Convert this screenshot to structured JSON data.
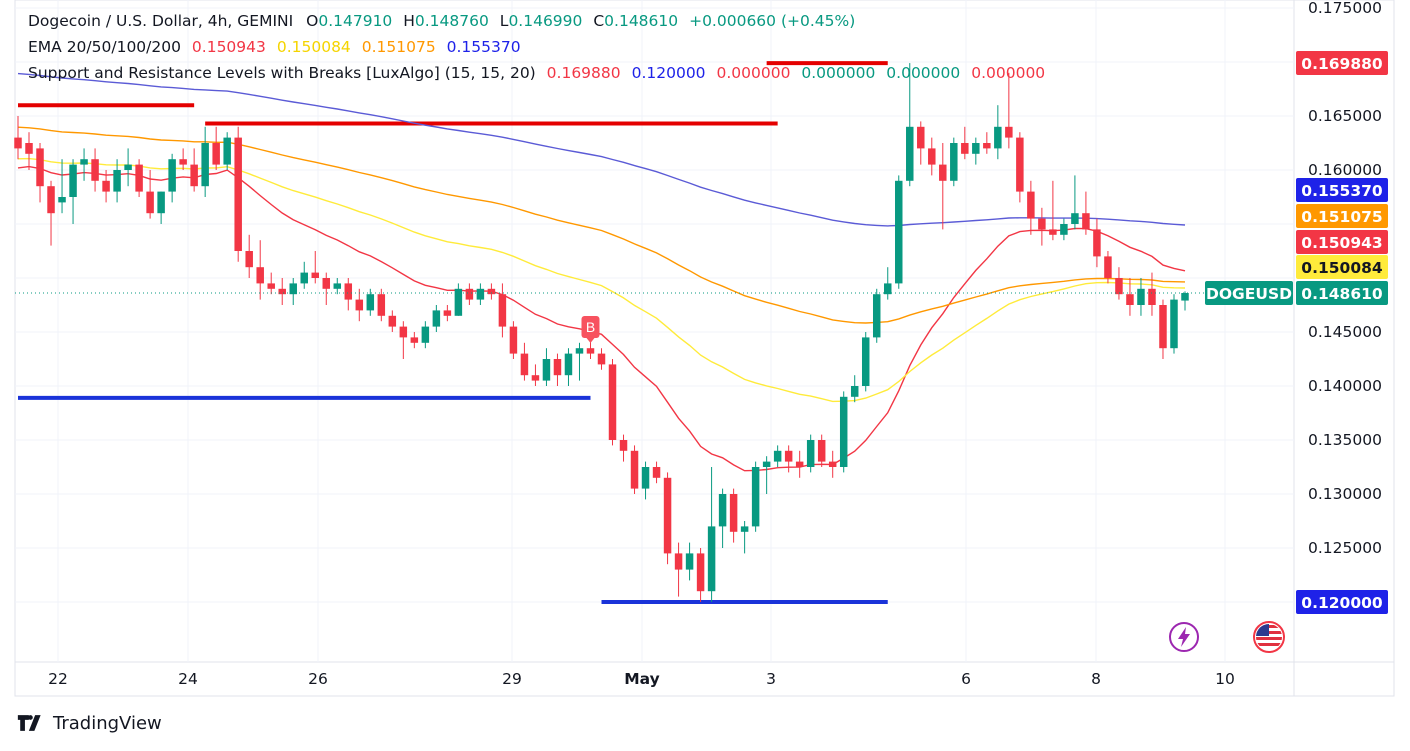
{
  "legend": {
    "symbol": "Dogecoin / U.S. Dollar, 4h, GEMINI",
    "open_label": "O",
    "open": "0.147910",
    "high_label": "H",
    "high": "0.148760",
    "low_label": "L",
    "low": "0.146990",
    "close_label": "C",
    "close": "0.148610",
    "change": "+0.000660 (+0.45%)",
    "ema_label": "EMA 20/50/100/200",
    "ema20": "0.150943",
    "ema50": "0.150084",
    "ema100": "0.151075",
    "ema200": "0.155370",
    "sr_label": "Support and Resistance Levels with Breaks [LuxAlgo] (15, 15, 20)",
    "sr_values": [
      "0.169880",
      "0.120000",
      "0.000000",
      "0.000000",
      "0.000000",
      "0.000000"
    ]
  },
  "footer": {
    "brand": "TradingView"
  },
  "colors": {
    "up": "#089981",
    "down": "#f23645",
    "ema20": "#f23645",
    "ema50": "#ffeb3b",
    "ema100": "#ff9800",
    "ema200": "#5b5bd6",
    "resistance": "#e40000",
    "support": "#1a33d9"
  },
  "chart_data": {
    "type": "candlestick",
    "symbol": "DOGEUSD",
    "timeframe": "4h",
    "y_axis_ticks": [
      "0.175000",
      "0.165000",
      "0.160000",
      "0.145000",
      "0.140000",
      "0.135000",
      "0.130000",
      "0.125000"
    ],
    "x_axis_ticks": [
      "22",
      "24",
      "26",
      "29",
      "May",
      "3",
      "6",
      "8",
      "10"
    ],
    "price_labels": [
      {
        "text": "0.169880",
        "value": 0.16988,
        "color": "#f23645"
      },
      {
        "text": "0.155370",
        "value": 0.15537,
        "color": "#1e22e8"
      },
      {
        "text": "0.151075",
        "value": 0.151075,
        "color": "#ff9800"
      },
      {
        "text": "0.150943",
        "value": 0.150943,
        "color": "#f23645"
      },
      {
        "text": "0.150084",
        "value": 0.150084,
        "color": "#ffeb3b"
      },
      {
        "text": "0.148610",
        "value": 0.14861,
        "color": "#089981"
      },
      {
        "text": "0.120000",
        "value": 0.12,
        "color": "#1e22e8"
      }
    ],
    "current_symbol_tag": "DOGEUSD",
    "current_price": 0.14861,
    "break_marker": "B",
    "resistance_levels": [
      {
        "value": 0.166,
        "from_index": 0,
        "to_index": 16
      },
      {
        "value": 0.1643,
        "from_index": 17,
        "to_index": 69
      },
      {
        "value": 0.1699,
        "from_index": 68,
        "to_index": 79
      }
    ],
    "support_levels": [
      {
        "value": 0.1389,
        "from_index": 0,
        "to_index": 52
      },
      {
        "value": 0.12,
        "from_index": 53,
        "to_index": 79
      }
    ],
    "candles": [
      {
        "o": 0.163,
        "h": 0.165,
        "l": 0.161,
        "c": 0.162
      },
      {
        "o": 0.1625,
        "h": 0.1635,
        "l": 0.16,
        "c": 0.1615
      },
      {
        "o": 0.162,
        "h": 0.1625,
        "l": 0.157,
        "c": 0.1585
      },
      {
        "o": 0.1585,
        "h": 0.159,
        "l": 0.153,
        "c": 0.156
      },
      {
        "o": 0.157,
        "h": 0.161,
        "l": 0.156,
        "c": 0.1575
      },
      {
        "o": 0.1575,
        "h": 0.161,
        "l": 0.155,
        "c": 0.1605
      },
      {
        "o": 0.1605,
        "h": 0.162,
        "l": 0.159,
        "c": 0.161
      },
      {
        "o": 0.161,
        "h": 0.162,
        "l": 0.158,
        "c": 0.159
      },
      {
        "o": 0.159,
        "h": 0.16,
        "l": 0.157,
        "c": 0.158
      },
      {
        "o": 0.158,
        "h": 0.161,
        "l": 0.157,
        "c": 0.16
      },
      {
        "o": 0.16,
        "h": 0.162,
        "l": 0.1585,
        "c": 0.1605
      },
      {
        "o": 0.1605,
        "h": 0.161,
        "l": 0.1575,
        "c": 0.158
      },
      {
        "o": 0.158,
        "h": 0.16,
        "l": 0.1555,
        "c": 0.156
      },
      {
        "o": 0.156,
        "h": 0.158,
        "l": 0.155,
        "c": 0.158
      },
      {
        "o": 0.158,
        "h": 0.1615,
        "l": 0.157,
        "c": 0.161
      },
      {
        "o": 0.161,
        "h": 0.162,
        "l": 0.16,
        "c": 0.1605
      },
      {
        "o": 0.1605,
        "h": 0.162,
        "l": 0.158,
        "c": 0.1585
      },
      {
        "o": 0.1585,
        "h": 0.164,
        "l": 0.1575,
        "c": 0.1625
      },
      {
        "o": 0.1625,
        "h": 0.164,
        "l": 0.16,
        "c": 0.1605
      },
      {
        "o": 0.1605,
        "h": 0.1635,
        "l": 0.16,
        "c": 0.163
      },
      {
        "o": 0.163,
        "h": 0.164,
        "l": 0.1515,
        "c": 0.1525
      },
      {
        "o": 0.1525,
        "h": 0.154,
        "l": 0.15,
        "c": 0.151
      },
      {
        "o": 0.151,
        "h": 0.1535,
        "l": 0.148,
        "c": 0.1495
      },
      {
        "o": 0.1495,
        "h": 0.1505,
        "l": 0.1485,
        "c": 0.149
      },
      {
        "o": 0.149,
        "h": 0.15,
        "l": 0.1475,
        "c": 0.1485
      },
      {
        "o": 0.1485,
        "h": 0.15,
        "l": 0.1475,
        "c": 0.1495
      },
      {
        "o": 0.1495,
        "h": 0.1515,
        "l": 0.149,
        "c": 0.1505
      },
      {
        "o": 0.1505,
        "h": 0.1525,
        "l": 0.1495,
        "c": 0.15
      },
      {
        "o": 0.15,
        "h": 0.1505,
        "l": 0.1475,
        "c": 0.149
      },
      {
        "o": 0.149,
        "h": 0.15,
        "l": 0.1485,
        "c": 0.1495
      },
      {
        "o": 0.1495,
        "h": 0.15,
        "l": 0.147,
        "c": 0.148
      },
      {
        "o": 0.148,
        "h": 0.149,
        "l": 0.146,
        "c": 0.147
      },
      {
        "o": 0.147,
        "h": 0.149,
        "l": 0.1465,
        "c": 0.1485
      },
      {
        "o": 0.1485,
        "h": 0.149,
        "l": 0.146,
        "c": 0.1465
      },
      {
        "o": 0.1465,
        "h": 0.147,
        "l": 0.145,
        "c": 0.1455
      },
      {
        "o": 0.1455,
        "h": 0.146,
        "l": 0.1425,
        "c": 0.1445
      },
      {
        "o": 0.1445,
        "h": 0.145,
        "l": 0.1435,
        "c": 0.144
      },
      {
        "o": 0.144,
        "h": 0.146,
        "l": 0.1435,
        "c": 0.1455
      },
      {
        "o": 0.1455,
        "h": 0.1475,
        "l": 0.145,
        "c": 0.147
      },
      {
        "o": 0.147,
        "h": 0.1475,
        "l": 0.146,
        "c": 0.1465
      },
      {
        "o": 0.1465,
        "h": 0.1495,
        "l": 0.1465,
        "c": 0.149
      },
      {
        "o": 0.149,
        "h": 0.1495,
        "l": 0.1475,
        "c": 0.148
      },
      {
        "o": 0.148,
        "h": 0.1495,
        "l": 0.1475,
        "c": 0.149
      },
      {
        "o": 0.149,
        "h": 0.1495,
        "l": 0.148,
        "c": 0.1485
      },
      {
        "o": 0.1485,
        "h": 0.1495,
        "l": 0.1445,
        "c": 0.1455
      },
      {
        "o": 0.1455,
        "h": 0.146,
        "l": 0.1425,
        "c": 0.143
      },
      {
        "o": 0.143,
        "h": 0.144,
        "l": 0.1405,
        "c": 0.141
      },
      {
        "o": 0.141,
        "h": 0.142,
        "l": 0.14,
        "c": 0.1405
      },
      {
        "o": 0.1405,
        "h": 0.1435,
        "l": 0.14,
        "c": 0.1425
      },
      {
        "o": 0.1425,
        "h": 0.143,
        "l": 0.14,
        "c": 0.141
      },
      {
        "o": 0.141,
        "h": 0.1435,
        "l": 0.14,
        "c": 0.143
      },
      {
        "o": 0.143,
        "h": 0.144,
        "l": 0.1405,
        "c": 0.1435
      },
      {
        "o": 0.1435,
        "h": 0.1445,
        "l": 0.1425,
        "c": 0.143
      },
      {
        "o": 0.143,
        "h": 0.1435,
        "l": 0.1415,
        "c": 0.142
      },
      {
        "o": 0.142,
        "h": 0.1425,
        "l": 0.1345,
        "c": 0.135
      },
      {
        "o": 0.135,
        "h": 0.1355,
        "l": 0.133,
        "c": 0.134
      },
      {
        "o": 0.134,
        "h": 0.1345,
        "l": 0.13,
        "c": 0.1305
      },
      {
        "o": 0.1305,
        "h": 0.133,
        "l": 0.1295,
        "c": 0.1325
      },
      {
        "o": 0.1325,
        "h": 0.133,
        "l": 0.131,
        "c": 0.1315
      },
      {
        "o": 0.1315,
        "h": 0.132,
        "l": 0.1235,
        "c": 0.1245
      },
      {
        "o": 0.1245,
        "h": 0.1255,
        "l": 0.1205,
        "c": 0.123
      },
      {
        "o": 0.123,
        "h": 0.1255,
        "l": 0.122,
        "c": 0.1245
      },
      {
        "o": 0.1245,
        "h": 0.125,
        "l": 0.12,
        "c": 0.121
      },
      {
        "o": 0.121,
        "h": 0.1325,
        "l": 0.12,
        "c": 0.127
      },
      {
        "o": 0.127,
        "h": 0.1305,
        "l": 0.125,
        "c": 0.13
      },
      {
        "o": 0.13,
        "h": 0.1305,
        "l": 0.1255,
        "c": 0.1265
      },
      {
        "o": 0.1265,
        "h": 0.1275,
        "l": 0.1245,
        "c": 0.127
      },
      {
        "o": 0.127,
        "h": 0.133,
        "l": 0.1265,
        "c": 0.1325
      },
      {
        "o": 0.1325,
        "h": 0.1335,
        "l": 0.13,
        "c": 0.133
      },
      {
        "o": 0.133,
        "h": 0.1345,
        "l": 0.1325,
        "c": 0.134
      },
      {
        "o": 0.134,
        "h": 0.1345,
        "l": 0.132,
        "c": 0.133
      },
      {
        "o": 0.133,
        "h": 0.134,
        "l": 0.1315,
        "c": 0.1325
      },
      {
        "o": 0.1325,
        "h": 0.1355,
        "l": 0.132,
        "c": 0.135
      },
      {
        "o": 0.135,
        "h": 0.1355,
        "l": 0.1325,
        "c": 0.133
      },
      {
        "o": 0.133,
        "h": 0.134,
        "l": 0.1315,
        "c": 0.1325
      },
      {
        "o": 0.1325,
        "h": 0.1395,
        "l": 0.132,
        "c": 0.139
      },
      {
        "o": 0.139,
        "h": 0.141,
        "l": 0.1385,
        "c": 0.14
      },
      {
        "o": 0.14,
        "h": 0.145,
        "l": 0.1395,
        "c": 0.1445
      },
      {
        "o": 0.1445,
        "h": 0.149,
        "l": 0.144,
        "c": 0.1485
      },
      {
        "o": 0.1485,
        "h": 0.151,
        "l": 0.148,
        "c": 0.1495
      },
      {
        "o": 0.1495,
        "h": 0.1595,
        "l": 0.149,
        "c": 0.159
      },
      {
        "o": 0.159,
        "h": 0.1699,
        "l": 0.1585,
        "c": 0.164
      },
      {
        "o": 0.164,
        "h": 0.1645,
        "l": 0.1605,
        "c": 0.162
      },
      {
        "o": 0.162,
        "h": 0.163,
        "l": 0.1595,
        "c": 0.1605
      },
      {
        "o": 0.1605,
        "h": 0.1625,
        "l": 0.1545,
        "c": 0.159
      },
      {
        "o": 0.159,
        "h": 0.163,
        "l": 0.1585,
        "c": 0.1625
      },
      {
        "o": 0.1625,
        "h": 0.164,
        "l": 0.161,
        "c": 0.1615
      },
      {
        "o": 0.1615,
        "h": 0.163,
        "l": 0.1605,
        "c": 0.1625
      },
      {
        "o": 0.1625,
        "h": 0.1635,
        "l": 0.1615,
        "c": 0.162
      },
      {
        "o": 0.162,
        "h": 0.166,
        "l": 0.161,
        "c": 0.164
      },
      {
        "o": 0.164,
        "h": 0.169,
        "l": 0.162,
        "c": 0.163
      },
      {
        "o": 0.163,
        "h": 0.1635,
        "l": 0.157,
        "c": 0.158
      },
      {
        "o": 0.158,
        "h": 0.159,
        "l": 0.154,
        "c": 0.1555
      },
      {
        "o": 0.1555,
        "h": 0.1565,
        "l": 0.153,
        "c": 0.1545
      },
      {
        "o": 0.1545,
        "h": 0.159,
        "l": 0.1535,
        "c": 0.154
      },
      {
        "o": 0.154,
        "h": 0.1555,
        "l": 0.1535,
        "c": 0.155
      },
      {
        "o": 0.155,
        "h": 0.1595,
        "l": 0.1545,
        "c": 0.156
      },
      {
        "o": 0.156,
        "h": 0.158,
        "l": 0.154,
        "c": 0.1545
      },
      {
        "o": 0.1545,
        "h": 0.1555,
        "l": 0.151,
        "c": 0.152
      },
      {
        "o": 0.152,
        "h": 0.1525,
        "l": 0.1495,
        "c": 0.15
      },
      {
        "o": 0.15,
        "h": 0.151,
        "l": 0.148,
        "c": 0.1485
      },
      {
        "o": 0.1485,
        "h": 0.15,
        "l": 0.1465,
        "c": 0.1475
      },
      {
        "o": 0.1475,
        "h": 0.15,
        "l": 0.1465,
        "c": 0.149
      },
      {
        "o": 0.149,
        "h": 0.1505,
        "l": 0.1465,
        "c": 0.1475
      },
      {
        "o": 0.1475,
        "h": 0.148,
        "l": 0.1425,
        "c": 0.1435
      },
      {
        "o": 0.1435,
        "h": 0.1485,
        "l": 0.143,
        "c": 0.148
      },
      {
        "o": 0.14791,
        "h": 0.14876,
        "l": 0.14699,
        "c": 0.14861
      }
    ]
  }
}
